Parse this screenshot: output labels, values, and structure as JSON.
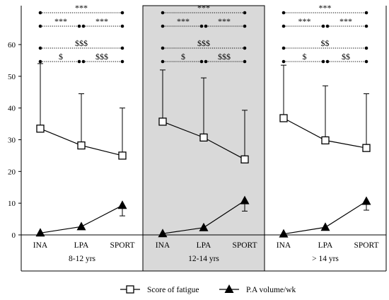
{
  "chart_data": {
    "type": "line",
    "ylim": [
      0,
      60
    ],
    "yticks": [
      0,
      10,
      20,
      30,
      40,
      50,
      60
    ],
    "categories": [
      "INA",
      "LPA",
      "SPORT"
    ],
    "grid": false,
    "legend_position": "bottom-center",
    "panels": [
      {
        "label": "8-12 yrs",
        "shaded": false,
        "series": [
          {
            "name": "Score of fatigue",
            "marker": "open-square",
            "values": [
              33.5,
              28.2,
              25.0
            ],
            "error_upper": [
              54.0,
              44.5,
              40.0
            ]
          },
          {
            "name": "P.A volume/wk",
            "marker": "filled-triangle",
            "values": [
              0.6,
              2.6,
              9.3
            ],
            "error_lower": [
              null,
              null,
              6.0
            ]
          }
        ],
        "brackets": [
          {
            "text": "***",
            "from": 0,
            "to": 2,
            "level": 3
          },
          {
            "text": "***",
            "from": 0,
            "to": 1,
            "level": 2
          },
          {
            "text": "***",
            "from": 1,
            "to": 2,
            "level": 2
          },
          {
            "text": "$$$",
            "from": 0,
            "to": 2,
            "level": 1
          },
          {
            "text": "$",
            "from": 0,
            "to": 1,
            "level": 0
          },
          {
            "text": "$$$",
            "from": 1,
            "to": 2,
            "level": 0
          }
        ]
      },
      {
        "label": "12-14 yrs",
        "shaded": true,
        "series": [
          {
            "name": "Score of fatigue",
            "marker": "open-square",
            "values": [
              35.7,
              30.7,
              23.8
            ],
            "error_upper": [
              52.0,
              49.5,
              39.3
            ]
          },
          {
            "name": "P.A volume/wk",
            "marker": "filled-triangle",
            "values": [
              0.4,
              2.3,
              10.8
            ],
            "error_lower": [
              null,
              null,
              7.5
            ]
          }
        ],
        "brackets": [
          {
            "text": "***",
            "from": 0,
            "to": 2,
            "level": 3
          },
          {
            "text": "***",
            "from": 0,
            "to": 1,
            "level": 2
          },
          {
            "text": "***",
            "from": 1,
            "to": 2,
            "level": 2
          },
          {
            "text": "$$$",
            "from": 0,
            "to": 2,
            "level": 1
          },
          {
            "text": "$",
            "from": 0,
            "to": 1,
            "level": 0
          },
          {
            "text": "$$$",
            "from": 1,
            "to": 2,
            "level": 0
          }
        ]
      },
      {
        "label": "> 14 yrs",
        "shaded": false,
        "series": [
          {
            "name": "Score of fatigue",
            "marker": "open-square",
            "values": [
              36.8,
              29.8,
              27.4
            ],
            "error_upper": [
              53.5,
              47.0,
              44.5
            ]
          },
          {
            "name": "P.A volume/wk",
            "marker": "filled-triangle",
            "values": [
              0.3,
              2.4,
              10.6
            ],
            "error_lower": [
              null,
              null,
              7.8
            ]
          }
        ],
        "brackets": [
          {
            "text": "***",
            "from": 0,
            "to": 2,
            "level": 3
          },
          {
            "text": "***",
            "from": 0,
            "to": 1,
            "level": 2
          },
          {
            "text": "***",
            "from": 1,
            "to": 2,
            "level": 2
          },
          {
            "text": "$$",
            "from": 0,
            "to": 2,
            "level": 1
          },
          {
            "text": "$",
            "from": 0,
            "to": 1,
            "level": 0
          },
          {
            "text": "$$",
            "from": 1,
            "to": 2,
            "level": 0
          }
        ]
      }
    ],
    "legend": [
      {
        "label": "Score of fatigue",
        "marker": "open-square"
      },
      {
        "label": "P.A volume/wk",
        "marker": "filled-triangle"
      }
    ]
  }
}
